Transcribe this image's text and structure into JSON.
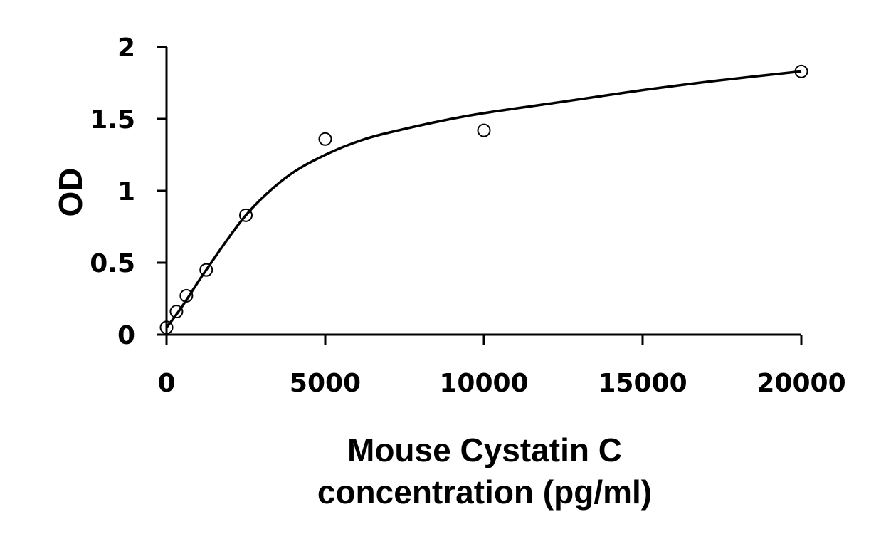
{
  "chart_data": {
    "type": "scatter",
    "title": "",
    "xlabel_line1": "Mouse Cystatin C",
    "xlabel_line2": "concentration (pg/ml)",
    "ylabel": "OD",
    "xlim": [
      0,
      20000
    ],
    "ylim": [
      0,
      2
    ],
    "xticks": [
      0,
      5000,
      10000,
      15000,
      20000
    ],
    "yticks": [
      0,
      0.5,
      1,
      1.5,
      2
    ],
    "xtick_labels": [
      "0",
      "5000",
      "10000",
      "15000",
      "20000"
    ],
    "ytick_labels": [
      "0",
      "0.5",
      "1",
      "1.5",
      "2"
    ],
    "grid": false,
    "legend": "none",
    "series": [
      {
        "marker": "open-circle",
        "x": [
          0,
          312.5,
          625,
          1250,
          2500,
          5000,
          10000,
          20000
        ],
        "y": [
          0.05,
          0.16,
          0.27,
          0.45,
          0.83,
          1.36,
          1.42,
          1.83
        ]
      }
    ],
    "fit_curve": {
      "style": "smooth-line",
      "x": [
        0,
        312.5,
        625,
        1250,
        2500,
        3750,
        5000,
        6250,
        7500,
        8750,
        10000,
        12500,
        15000,
        17500,
        20000
      ],
      "y": [
        0.05,
        0.14,
        0.24,
        0.45,
        0.83,
        1.09,
        1.25,
        1.36,
        1.43,
        1.49,
        1.54,
        1.62,
        1.7,
        1.77,
        1.83
      ]
    }
  }
}
